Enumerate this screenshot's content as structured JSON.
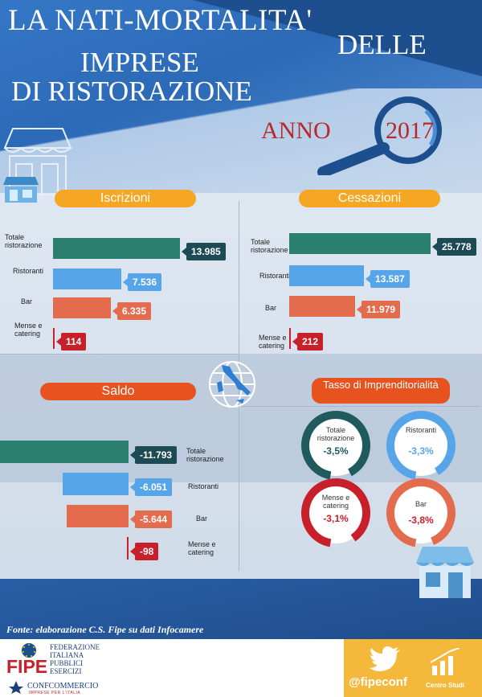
{
  "title": {
    "line1": "LA NATI-MORTALITA'",
    "line2": "DELLE",
    "line3": "IMPRESE",
    "line4": "DI RISTORAZIONE",
    "anno": "ANNO",
    "year": "2017"
  },
  "sections": {
    "iscrizioni": "Iscrizioni",
    "cessazioni": "Cessazioni",
    "saldo": "Saldo",
    "tasso": "Tasso di Imprenditorialità"
  },
  "categories": {
    "totale": "Totale ristorazione",
    "ristoranti": "Ristoranti",
    "bar": "Bar",
    "mense": "Mense e catering"
  },
  "chart_data": [
    {
      "type": "bar",
      "title": "Iscrizioni",
      "categories": [
        "Totale ristorazione",
        "Ristoranti",
        "Bar",
        "Mense e catering"
      ],
      "values": [
        13985,
        7536,
        6335,
        114
      ],
      "labels": [
        "13.985",
        "7.536",
        "6.335",
        "114"
      ],
      "colors": [
        "#2a7f6e",
        "#56a5e8",
        "#e36c4f",
        "#c8202a"
      ]
    },
    {
      "type": "bar",
      "title": "Cessazioni",
      "categories": [
        "Totale ristorazione",
        "Ristoranti",
        "Bar",
        "Mense e catering"
      ],
      "values": [
        25778,
        13587,
        11979,
        212
      ],
      "labels": [
        "25.778",
        "13.587",
        "11.979",
        "212"
      ],
      "colors": [
        "#2a7f6e",
        "#56a5e8",
        "#e36c4f",
        "#c8202a"
      ]
    },
    {
      "type": "bar",
      "title": "Saldo",
      "categories": [
        "Totale ristorazione",
        "Ristoranti",
        "Bar",
        "Mense e catering"
      ],
      "values": [
        -11793,
        -6051,
        -5644,
        -98
      ],
      "labels": [
        "-11.793",
        "-6.051",
        "-5.644",
        "-98"
      ],
      "colors": [
        "#2a7f6e",
        "#56a5e8",
        "#e36c4f",
        "#c8202a"
      ]
    },
    {
      "type": "pie",
      "title": "Tasso di Imprenditorialità",
      "categories": [
        "Totale ristorazione",
        "Ristoranti",
        "Mense e catering",
        "Bar"
      ],
      "values": [
        -3.5,
        -3.3,
        -3.1,
        -3.8
      ],
      "labels": [
        "-3,5%",
        "-3,3%",
        "-3,1%",
        "-3,8%"
      ],
      "colors": [
        "#1f5a5c",
        "#56a5e8",
        "#c8202a",
        "#e36c4f"
      ]
    }
  ],
  "footer": {
    "source": "Fonte: elaborazione C.S. Fipe su dati Infocamere",
    "fipe_logo": "FIPE",
    "fipe_name": [
      "FEDERAZIONE",
      "ITALIANA",
      "PUBBLICI",
      "ESERCIZI"
    ],
    "confcommercio": "CONFCOMMERCIO",
    "confcommercio_sub": "IMPRESE PER L'ITALIA",
    "handle": "@fipeconf",
    "centro_studi": "Centro Studi"
  },
  "icons": {
    "shop": "shop-icon",
    "magnifier": "magnifier-icon",
    "globe": "italy-globe-icon",
    "twitter": "twitter-bird-icon",
    "chart": "bar-chart-icon"
  }
}
